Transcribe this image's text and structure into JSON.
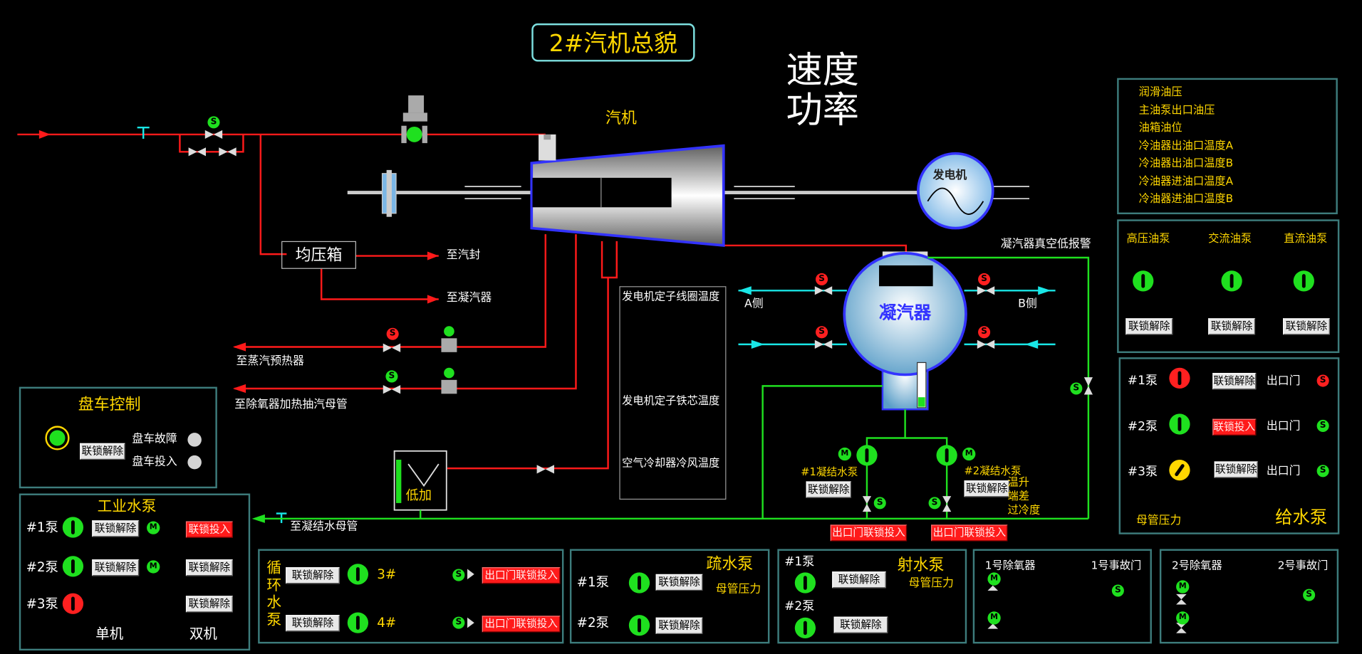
{
  "title": "2#汽机总貌",
  "speed_power": {
    "line1": "速度",
    "line2": "功率"
  },
  "turbine_label": "汽机",
  "generator_label": "发电机",
  "header_box": "均压箱",
  "pipe_labels": {
    "to_seal": "至汽封",
    "to_condenser": "至凝汽器",
    "to_steam_preheater": "至蒸汽预热器",
    "to_deaerator": "至除氧器加热抽汽母管",
    "to_condensate_main": "至凝结水母管",
    "low_heater": "低加"
  },
  "condenser": {
    "label": "凝汽器",
    "side_a": "A侧",
    "side_b": "B侧",
    "vacuum_alarm": "凝汽器真空低报警",
    "pump1_label": "#1凝结水泵",
    "pump2_label": "#2凝结水泵",
    "pump1_btn": "联锁解除",
    "pump2_btn": "联锁解除",
    "outlet1_btn": "出口门联锁投入",
    "outlet2_btn": "出口门联锁投入",
    "temp_rise": "温升",
    "terminal_diff": "端差",
    "subcool": "过冷度"
  },
  "gen_temps": [
    "发电机定子线圈温度",
    "发电机定子铁芯温度",
    "空气冷却器冷风温度"
  ],
  "oil_panel": [
    "润滑油压",
    "主油泵出口油压",
    "油箱油位",
    "冷油器出油口温度A",
    "冷油器出油口温度B",
    "冷油器进油口温度A",
    "冷油器进油口温度B"
  ],
  "oil_pumps": {
    "names": [
      "高压油泵",
      "交流油泵",
      "直流油泵"
    ],
    "btn": "联锁解除"
  },
  "feed_water": {
    "title": "给水泵",
    "header_pressure": "母管压力",
    "outlet_label": "出口门",
    "rows": [
      {
        "name": "#1泵",
        "btn": "联锁解除"
      },
      {
        "name": "#2泵",
        "btn": "联锁投入"
      },
      {
        "name": "#3泵",
        "btn": "联锁解除"
      }
    ]
  },
  "turning": {
    "title": "盘车控制",
    "btn": "联锁解除",
    "fault": "盘车故障",
    "engaged": "盘车投入"
  },
  "industrial_water": {
    "title": "工业水泵",
    "rows": [
      {
        "name": "#1泵",
        "btn": "联锁解除",
        "mode_btn": "联锁投入"
      },
      {
        "name": "#2泵",
        "btn": "联锁解除",
        "mode_btn": "联锁解除"
      },
      {
        "name": "#3泵",
        "mode_btn": "联锁解除"
      }
    ],
    "single": "单机",
    "double": "双机"
  },
  "circ_water": {
    "title_chars": [
      "循",
      "环",
      "水",
      "泵"
    ],
    "rows": [
      {
        "btn": "联锁解除",
        "num": "3#",
        "outlet_btn": "出口门联锁投入"
      },
      {
        "btn": "联锁解除",
        "num": "4#",
        "outlet_btn": "出口门联锁投入"
      }
    ]
  },
  "drain": {
    "title": "疏水泵",
    "header_pressure": "母管压力",
    "rows": [
      {
        "name": "#1泵",
        "btn": "联锁解除"
      },
      {
        "name": "#2泵",
        "btn": "联锁解除"
      }
    ]
  },
  "jet": {
    "title": "射水泵",
    "header_pressure": "母管压力",
    "rows": [
      {
        "name": "#1泵",
        "btn": "联锁解除"
      },
      {
        "name": "#2泵",
        "btn": "联锁解除"
      }
    ]
  },
  "deaerator1": {
    "name": "1号除氧器",
    "fault": "1号事故门"
  },
  "deaerator2": {
    "name": "2号除氧器",
    "fault": "2号事故门"
  },
  "colors": {
    "steam": "#ff1a1a",
    "water": "#1fe01f",
    "cooling": "#19e6e6",
    "panel_border": "#3d7c7c",
    "accent": "#ffd700"
  }
}
